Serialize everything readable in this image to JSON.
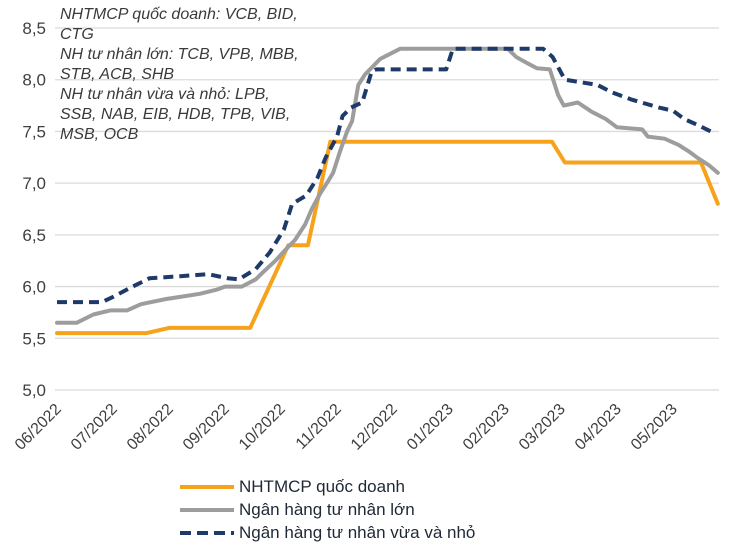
{
  "chart_data": {
    "type": "line",
    "title": "",
    "xlabel": "",
    "ylabel": "",
    "ylim": [
      5.0,
      8.5
    ],
    "grid": "horizontal",
    "legend_position": "bottom-left",
    "x_tick_labels": [
      "06/2022",
      "07/2022",
      "08/2022",
      "09/2022",
      "10/2022",
      "11/2022",
      "12/2022",
      "01/2023",
      "02/2023",
      "03/2023",
      "04/2023",
      "05/2023"
    ],
    "y_tick_labels": [
      "5,0",
      "5,5",
      "6,0",
      "6,5",
      "7,0",
      "7,5",
      "8,0",
      "8,5"
    ],
    "annotation": {
      "lines": [
        "NHTMCP quốc doanh: VCB, BID,",
        "CTG",
        "NH tư nhân lớn: TCB, VPB, MBB,",
        "STB, ACB, SHB",
        "NH tư nhân vừa và nhỏ: LPB,",
        "SSB, NAB, EIB, HDB, TPB, VIB,",
        "MSB, OCB"
      ]
    },
    "series": [
      {
        "name": "NHTMCP quốc doanh",
        "color": "#F7A21B",
        "style": "solid",
        "points": [
          [
            0,
            5.55
          ],
          [
            1.6,
            5.55
          ],
          [
            2.0,
            5.6
          ],
          [
            3.45,
            5.6
          ],
          [
            4.13,
            6.4
          ],
          [
            4.48,
            6.4
          ],
          [
            4.88,
            7.4
          ],
          [
            8.84,
            7.4
          ],
          [
            9.07,
            7.2
          ],
          [
            11.5,
            7.2
          ],
          [
            11.8,
            6.8
          ]
        ]
      },
      {
        "name": "Ngân hàng tư nhân lớn",
        "color": "#9D9D9D",
        "style": "solid",
        "points": [
          [
            0,
            5.65
          ],
          [
            0.35,
            5.65
          ],
          [
            0.65,
            5.73
          ],
          [
            0.95,
            5.77
          ],
          [
            1.25,
            5.77
          ],
          [
            1.5,
            5.83
          ],
          [
            1.95,
            5.88
          ],
          [
            2.2,
            5.9
          ],
          [
            2.55,
            5.93
          ],
          [
            2.85,
            5.97
          ],
          [
            3.0,
            6.0
          ],
          [
            3.3,
            6.0
          ],
          [
            3.55,
            6.07
          ],
          [
            3.7,
            6.15
          ],
          [
            3.9,
            6.25
          ],
          [
            4.07,
            6.35
          ],
          [
            4.25,
            6.45
          ],
          [
            4.43,
            6.6
          ],
          [
            4.55,
            6.75
          ],
          [
            4.7,
            6.9
          ],
          [
            4.82,
            7.0
          ],
          [
            4.93,
            7.1
          ],
          [
            5.05,
            7.3
          ],
          [
            5.18,
            7.5
          ],
          [
            5.27,
            7.6
          ],
          [
            5.38,
            7.95
          ],
          [
            5.5,
            8.05
          ],
          [
            5.77,
            8.2
          ],
          [
            6.13,
            8.3
          ],
          [
            8.05,
            8.3
          ],
          [
            8.2,
            8.22
          ],
          [
            8.4,
            8.16
          ],
          [
            8.57,
            8.11
          ],
          [
            8.8,
            8.1
          ],
          [
            8.95,
            7.85
          ],
          [
            9.05,
            7.75
          ],
          [
            9.3,
            7.78
          ],
          [
            9.55,
            7.69
          ],
          [
            9.8,
            7.62
          ],
          [
            10.0,
            7.54
          ],
          [
            10.45,
            7.52
          ],
          [
            10.55,
            7.45
          ],
          [
            10.85,
            7.43
          ],
          [
            11.1,
            7.37
          ],
          [
            11.3,
            7.3
          ],
          [
            11.45,
            7.24
          ],
          [
            11.65,
            7.17
          ],
          [
            11.8,
            7.1
          ]
        ]
      },
      {
        "name": "Ngân hàng tư nhân vừa và nhỏ",
        "color": "#1E3A68",
        "style": "dashed",
        "points": [
          [
            0,
            5.85
          ],
          [
            0.8,
            5.85
          ],
          [
            1.0,
            5.9
          ],
          [
            1.35,
            6.0
          ],
          [
            1.65,
            6.08
          ],
          [
            2.2,
            6.1
          ],
          [
            2.7,
            6.12
          ],
          [
            3.05,
            6.08
          ],
          [
            3.25,
            6.07
          ],
          [
            3.55,
            6.17
          ],
          [
            3.8,
            6.33
          ],
          [
            4.05,
            6.55
          ],
          [
            4.2,
            6.8
          ],
          [
            4.45,
            6.88
          ],
          [
            4.65,
            7.05
          ],
          [
            4.8,
            7.25
          ],
          [
            5.0,
            7.45
          ],
          [
            5.1,
            7.65
          ],
          [
            5.25,
            7.73
          ],
          [
            5.45,
            7.78
          ],
          [
            5.62,
            8.08
          ],
          [
            5.7,
            8.1
          ],
          [
            6.95,
            8.1
          ],
          [
            7.07,
            8.3
          ],
          [
            8.68,
            8.3
          ],
          [
            8.85,
            8.22
          ],
          [
            9.07,
            8.0
          ],
          [
            9.65,
            7.95
          ],
          [
            9.9,
            7.88
          ],
          [
            10.25,
            7.81
          ],
          [
            10.5,
            7.77
          ],
          [
            10.75,
            7.73
          ],
          [
            11.0,
            7.7
          ],
          [
            11.2,
            7.62
          ],
          [
            11.45,
            7.56
          ],
          [
            11.75,
            7.48
          ]
        ]
      }
    ],
    "colors": {
      "grid": "#DBDBDB",
      "axis_text": "#3F3F3F",
      "legend_text": "#1F2835",
      "annotation_text": "#3A3A3A"
    }
  }
}
